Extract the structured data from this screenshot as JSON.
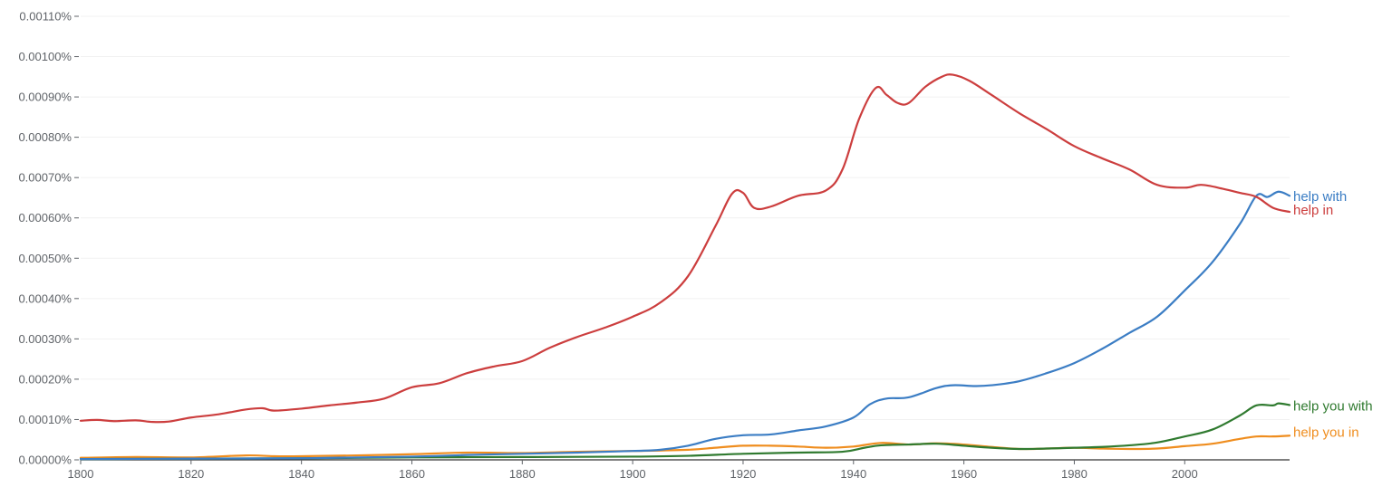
{
  "chart_data": {
    "type": "line",
    "title": "",
    "xlabel": "",
    "ylabel": "",
    "xlim": [
      1800,
      2019
    ],
    "ylim": [
      0,
      0.0011
    ],
    "y_ticks": [
      {
        "value": 0.0,
        "label": "0.00000%"
      },
      {
        "value": 0.0001,
        "label": "0.00010%"
      },
      {
        "value": 0.0002,
        "label": "0.00020%"
      },
      {
        "value": 0.0003,
        "label": "0.00030%"
      },
      {
        "value": 0.0004,
        "label": "0.00040%"
      },
      {
        "value": 0.0005,
        "label": "0.00050%"
      },
      {
        "value": 0.0006,
        "label": "0.00060%"
      },
      {
        "value": 0.0007,
        "label": "0.00070%"
      },
      {
        "value": 0.0008,
        "label": "0.00080%"
      },
      {
        "value": 0.0009,
        "label": "0.00090%"
      },
      {
        "value": 0.001,
        "label": "0.00100%"
      },
      {
        "value": 0.0011,
        "label": "0.00110%"
      }
    ],
    "x_ticks": [
      1800,
      1820,
      1840,
      1860,
      1880,
      1900,
      1920,
      1940,
      1960,
      1980,
      2000
    ],
    "series": [
      {
        "name": "help with",
        "color": "#3b7dc4",
        "points": [
          [
            1800,
            2e-06
          ],
          [
            1820,
            3e-06
          ],
          [
            1840,
            4e-06
          ],
          [
            1860,
            8e-06
          ],
          [
            1870,
            1.2e-05
          ],
          [
            1880,
            1.5e-05
          ],
          [
            1890,
            1.8e-05
          ],
          [
            1900,
            2.2e-05
          ],
          [
            1905,
            2.5e-05
          ],
          [
            1910,
            3.5e-05
          ],
          [
            1915,
            5.2e-05
          ],
          [
            1920,
            6.1e-05
          ],
          [
            1925,
            6.3e-05
          ],
          [
            1930,
            7.3e-05
          ],
          [
            1935,
            8.3e-05
          ],
          [
            1940,
            0.000105
          ],
          [
            1943,
            0.000138
          ],
          [
            1946,
            0.000152
          ],
          [
            1950,
            0.000155
          ],
          [
            1955,
            0.000178
          ],
          [
            1958,
            0.000185
          ],
          [
            1962,
            0.000183
          ],
          [
            1965,
            0.000185
          ],
          [
            1970,
            0.000195
          ],
          [
            1975,
            0.000215
          ],
          [
            1980,
            0.00024
          ],
          [
            1985,
            0.000275
          ],
          [
            1990,
            0.000315
          ],
          [
            1995,
            0.000355
          ],
          [
            2000,
            0.00042
          ],
          [
            2005,
            0.00049
          ],
          [
            2010,
            0.000585
          ],
          [
            2013,
            0.000655
          ],
          [
            2015,
            0.000652
          ],
          [
            2017,
            0.000665
          ],
          [
            2019,
            0.000655
          ]
        ]
      },
      {
        "name": "help in",
        "color": "#cc3e3e",
        "points": [
          [
            1800,
            9.7e-05
          ],
          [
            1803,
            9.9e-05
          ],
          [
            1806,
            9.6e-05
          ],
          [
            1810,
            9.8e-05
          ],
          [
            1813,
            9.4e-05
          ],
          [
            1816,
            9.5e-05
          ],
          [
            1820,
            0.000105
          ],
          [
            1825,
            0.000113
          ],
          [
            1830,
            0.000125
          ],
          [
            1833,
            0.000128
          ],
          [
            1835,
            0.000122
          ],
          [
            1840,
            0.000127
          ],
          [
            1845,
            0.000135
          ],
          [
            1850,
            0.000142
          ],
          [
            1855,
            0.000152
          ],
          [
            1860,
            0.00018
          ],
          [
            1865,
            0.00019
          ],
          [
            1870,
            0.000215
          ],
          [
            1875,
            0.000232
          ],
          [
            1880,
            0.000245
          ],
          [
            1885,
            0.000278
          ],
          [
            1890,
            0.000305
          ],
          [
            1895,
            0.000328
          ],
          [
            1900,
            0.000355
          ],
          [
            1905,
            0.00039
          ],
          [
            1910,
            0.000455
          ],
          [
            1915,
            0.00058
          ],
          [
            1918,
            0.00066
          ],
          [
            1920,
            0.000662
          ],
          [
            1922,
            0.000625
          ],
          [
            1925,
            0.000628
          ],
          [
            1930,
            0.000655
          ],
          [
            1935,
            0.000668
          ],
          [
            1938,
            0.00072
          ],
          [
            1941,
            0.000845
          ],
          [
            1944,
            0.000922
          ],
          [
            1946,
            0.000905
          ],
          [
            1948,
            0.000885
          ],
          [
            1950,
            0.000885
          ],
          [
            1953,
            0.000925
          ],
          [
            1956,
            0.00095
          ],
          [
            1958,
            0.000955
          ],
          [
            1961,
            0.00094
          ],
          [
            1965,
            0.000905
          ],
          [
            1970,
            0.00086
          ],
          [
            1975,
            0.00082
          ],
          [
            1980,
            0.000778
          ],
          [
            1985,
            0.000748
          ],
          [
            1990,
            0.00072
          ],
          [
            1995,
            0.000682
          ],
          [
            2000,
            0.000675
          ],
          [
            2003,
            0.000682
          ],
          [
            2007,
            0.000672
          ],
          [
            2010,
            0.000662
          ],
          [
            2013,
            0.000652
          ],
          [
            2016,
            0.000625
          ],
          [
            2019,
            0.000615
          ]
        ]
      },
      {
        "name": "help you with",
        "color": "#2f7a2f",
        "points": [
          [
            1800,
            2e-06
          ],
          [
            1820,
            3e-06
          ],
          [
            1840,
            4e-06
          ],
          [
            1860,
            6e-06
          ],
          [
            1880,
            7e-06
          ],
          [
            1900,
            8e-06
          ],
          [
            1910,
            1e-05
          ],
          [
            1920,
            1.5e-05
          ],
          [
            1930,
            1.8e-05
          ],
          [
            1938,
            2e-05
          ],
          [
            1942,
            3e-05
          ],
          [
            1945,
            3.6e-05
          ],
          [
            1950,
            3.8e-05
          ],
          [
            1955,
            4e-05
          ],
          [
            1960,
            3.5e-05
          ],
          [
            1965,
            3e-05
          ],
          [
            1970,
            2.7e-05
          ],
          [
            1975,
            2.8e-05
          ],
          [
            1980,
            3e-05
          ],
          [
            1985,
            3.2e-05
          ],
          [
            1990,
            3.6e-05
          ],
          [
            1995,
            4.3e-05
          ],
          [
            2000,
            5.8e-05
          ],
          [
            2005,
            7.5e-05
          ],
          [
            2010,
            0.00011
          ],
          [
            2013,
            0.000135
          ],
          [
            2016,
            0.000135
          ],
          [
            2017,
            0.00014
          ],
          [
            2019,
            0.000136
          ]
        ]
      },
      {
        "name": "help you in",
        "color": "#ef8d1e",
        "points": [
          [
            1800,
            5e-06
          ],
          [
            1810,
            7e-06
          ],
          [
            1820,
            6e-06
          ],
          [
            1830,
            1.1e-05
          ],
          [
            1835,
            9e-06
          ],
          [
            1840,
            9e-06
          ],
          [
            1850,
            1.1e-05
          ],
          [
            1860,
            1.4e-05
          ],
          [
            1870,
            1.8e-05
          ],
          [
            1880,
            1.7e-05
          ],
          [
            1890,
            2e-05
          ],
          [
            1900,
            2.2e-05
          ],
          [
            1910,
            2.5e-05
          ],
          [
            1915,
            3e-05
          ],
          [
            1920,
            3.5e-05
          ],
          [
            1925,
            3.5e-05
          ],
          [
            1930,
            3.3e-05
          ],
          [
            1935,
            3e-05
          ],
          [
            1940,
            3.3e-05
          ],
          [
            1945,
            4.2e-05
          ],
          [
            1950,
            3.8e-05
          ],
          [
            1955,
            4.1e-05
          ],
          [
            1960,
            3.8e-05
          ],
          [
            1965,
            3.2e-05
          ],
          [
            1970,
            2.7e-05
          ],
          [
            1975,
            2.8e-05
          ],
          [
            1980,
            3e-05
          ],
          [
            1985,
            2.8e-05
          ],
          [
            1990,
            2.7e-05
          ],
          [
            1995,
            2.8e-05
          ],
          [
            2000,
            3.4e-05
          ],
          [
            2005,
            4e-05
          ],
          [
            2010,
            5.2e-05
          ],
          [
            2013,
            5.8e-05
          ],
          [
            2016,
            5.8e-05
          ],
          [
            2019,
            6e-05
          ]
        ]
      }
    ]
  }
}
